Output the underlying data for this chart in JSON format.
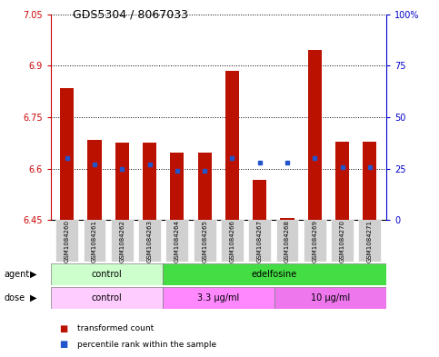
{
  "title": "GDS5304 / 8067033",
  "samples": [
    "GSM1084260",
    "GSM1084261",
    "GSM1084262",
    "GSM1084263",
    "GSM1084264",
    "GSM1084265",
    "GSM1084266",
    "GSM1084267",
    "GSM1084268",
    "GSM1084269",
    "GSM1084270",
    "GSM1084271"
  ],
  "red_values": [
    6.835,
    6.685,
    6.675,
    6.675,
    6.648,
    6.648,
    6.885,
    6.568,
    6.456,
    6.945,
    6.678,
    6.678
  ],
  "blue_percentiles": [
    30,
    27,
    25,
    27,
    24,
    24,
    30,
    28,
    28,
    30,
    26,
    26
  ],
  "ylim_left": [
    6.45,
    7.05
  ],
  "ylim_right": [
    0,
    100
  ],
  "yticks_left": [
    6.45,
    6.6,
    6.75,
    6.9,
    7.05
  ],
  "yticks_right": [
    0,
    25,
    50,
    75,
    100
  ],
  "ytick_labels_left": [
    "6.45",
    "6.6",
    "6.75",
    "6.9",
    "7.05"
  ],
  "ytick_labels_right": [
    "0",
    "25",
    "50",
    "75",
    "100%"
  ],
  "bar_bottom": 6.45,
  "bar_width": 0.5,
  "red_color": "#bb1100",
  "blue_color": "#2255cc",
  "agent_groups": [
    {
      "label": "control",
      "start": 0,
      "end": 3,
      "color": "#ccffcc"
    },
    {
      "label": "edelfosine",
      "start": 4,
      "end": 11,
      "color": "#44dd44"
    }
  ],
  "dose_groups": [
    {
      "label": "control",
      "start": 0,
      "end": 3,
      "color": "#ffccff"
    },
    {
      "label": "3.3 μg/ml",
      "start": 4,
      "end": 7,
      "color": "#ff88ff"
    },
    {
      "label": "10 μg/ml",
      "start": 8,
      "end": 11,
      "color": "#ee77ee"
    }
  ],
  "legend_items": [
    {
      "label": "transformed count",
      "color": "#bb1100"
    },
    {
      "label": "percentile rank within the sample",
      "color": "#2255cc"
    }
  ],
  "tick_label_color_left": "#cc0000",
  "tick_label_color_right": "#0000cc",
  "sample_box_color": "#d0d0d0",
  "agent_label": "agent",
  "dose_label": "dose",
  "figsize": [
    4.83,
    3.93
  ],
  "dpi": 100
}
